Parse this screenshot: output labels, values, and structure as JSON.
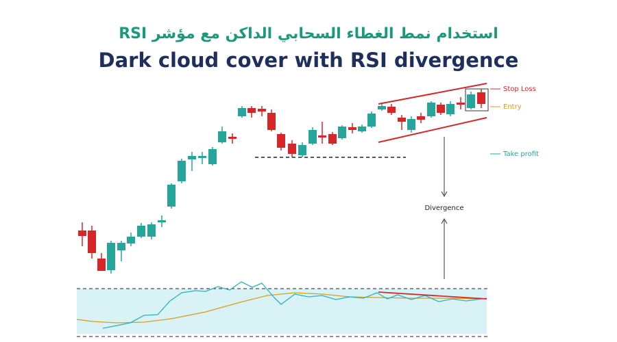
{
  "header": {
    "title_ar": "استخدام نمط الغطاء السحابي الداكن مع مؤشر RSI",
    "title_en": "Dark cloud cover with RSI divergence"
  },
  "labels": {
    "stop_loss": "Stop Loss",
    "entry": "Entry",
    "take_profit": "Take profit",
    "divergence": "Divergence"
  }
}
